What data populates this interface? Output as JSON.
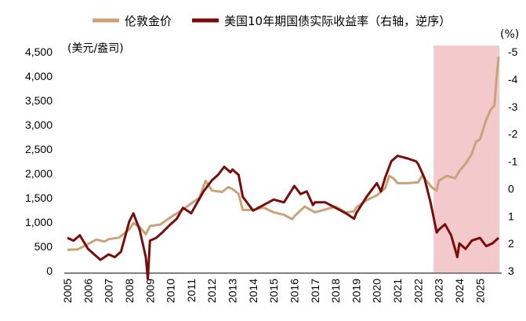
{
  "chart_data": {
    "type": "line",
    "title": "",
    "legend": {
      "placement": "top",
      "entries": [
        {
          "label": "伦敦金价",
          "color": "#c9a27a"
        },
        {
          "label": "美国10年期国债实际收益率（右轴，逆序）",
          "color": "#7a0b0b"
        }
      ]
    },
    "left_axis": {
      "unit_label": "(美元/盎司)",
      "ylim": [
        0,
        4500
      ],
      "ticks": [
        "0",
        "500",
        "1,000",
        "1,500",
        "2,000",
        "2,500",
        "3,000",
        "3,500",
        "4,000",
        "4,500"
      ],
      "tick_values": [
        0,
        500,
        1000,
        1500,
        2000,
        2500,
        3000,
        3500,
        4000,
        4500
      ]
    },
    "right_axis": {
      "unit_label": "(%)",
      "inverted": true,
      "ylim": [
        -5,
        3
      ],
      "ticks": [
        "-5",
        "-4",
        "-3",
        "-2",
        "-1",
        "0",
        "1",
        "2",
        "3"
      ],
      "tick_values": [
        -5,
        -4,
        -3,
        -2,
        -1,
        0,
        1,
        2,
        3
      ]
    },
    "x_axis": {
      "ticks": [
        "2005",
        "2006",
        "2007",
        "2008",
        "2009",
        "2010",
        "2011",
        "2012",
        "2013",
        "2014",
        "2015",
        "2016",
        "2017",
        "2018",
        "2019",
        "2020",
        "2021",
        "2022",
        "2023",
        "2024",
        "2025"
      ],
      "xlim": [
        2005,
        2025.9
      ]
    },
    "shaded_region": {
      "x_start": 2022.75,
      "x_end": 2025.95,
      "color": "#f3c9cc"
    },
    "series": [
      {
        "name": "伦敦金价",
        "axis": "left",
        "color": "#c9a27a",
        "x": [
          2005,
          2005.5,
          2006,
          2006.4,
          2006.8,
          2007,
          2007.5,
          2008,
          2008.2,
          2008.5,
          2008.8,
          2009,
          2009.5,
          2010,
          2010.5,
          2011,
          2011.4,
          2011.7,
          2012,
          2012.5,
          2012.8,
          2013,
          2013.3,
          2013.5,
          2014,
          2014.5,
          2015,
          2015.5,
          2015.9,
          2016,
          2016.5,
          2017,
          2017.5,
          2018,
          2018.5,
          2018.9,
          2019,
          2019.5,
          2020,
          2020.4,
          2020.6,
          2020.8,
          2021,
          2021.5,
          2022,
          2022.2,
          2022.7,
          2022.9,
          2023,
          2023.4,
          2023.8,
          2024,
          2024.3,
          2024.6,
          2024.8,
          2025,
          2025.3,
          2025.5,
          2025.7,
          2025.8,
          2025.9
        ],
        "values": [
          430,
          440,
          550,
          640,
          600,
          650,
          680,
          850,
          980,
          900,
          750,
          920,
          950,
          1100,
          1230,
          1380,
          1500,
          1850,
          1650,
          1620,
          1720,
          1680,
          1580,
          1250,
          1250,
          1300,
          1200,
          1150,
          1060,
          1120,
          1320,
          1200,
          1260,
          1320,
          1200,
          1220,
          1300,
          1450,
          1550,
          1700,
          1950,
          1900,
          1800,
          1800,
          1820,
          1950,
          1700,
          1650,
          1850,
          1950,
          1900,
          2050,
          2200,
          2400,
          2650,
          2700,
          3100,
          3300,
          3400,
          3950,
          4400
        ]
      },
      {
        "name": "美国10年期国债实际收益率（右轴，逆序）",
        "axis": "right",
        "color": "#7a0b0b",
        "x": [
          2005,
          2005.3,
          2005.6,
          2006,
          2006.3,
          2006.6,
          2007,
          2007.3,
          2007.6,
          2008,
          2008.2,
          2008.5,
          2008.8,
          2008.9,
          2009,
          2009.3,
          2009.6,
          2010,
          2010.3,
          2010.6,
          2011,
          2011.3,
          2011.6,
          2012,
          2012.3,
          2012.6,
          2012.9,
          2013,
          2013.3,
          2013.5,
          2013.9,
          2014,
          2014.5,
          2015,
          2015.5,
          2016,
          2016.3,
          2016.6,
          2016.9,
          2017,
          2017.5,
          2018,
          2018.5,
          2018.9,
          2019,
          2019.5,
          2020,
          2020.2,
          2020.4,
          2020.7,
          2021,
          2021.5,
          2021.9,
          2022,
          2022.3,
          2022.6,
          2022.9,
          2023,
          2023.3,
          2023.6,
          2023.9,
          2024,
          2024.3,
          2024.6,
          2025,
          2025.3,
          2025.6,
          2025.9
        ],
        "values": [
          1.8,
          1.9,
          1.7,
          2.2,
          2.4,
          2.6,
          2.4,
          2.5,
          2.3,
          1.2,
          0.9,
          1.5,
          2.5,
          3.3,
          1.9,
          1.8,
          1.6,
          1.3,
          1.1,
          0.7,
          0.9,
          0.5,
          0.1,
          -0.3,
          -0.5,
          -0.8,
          -0.6,
          -0.7,
          -0.5,
          0.3,
          0.7,
          0.8,
          0.6,
          0.4,
          0.5,
          -0.1,
          0.2,
          0.1,
          0.6,
          0.5,
          0.5,
          0.7,
          0.9,
          1.1,
          0.9,
          0.3,
          -0.2,
          0.1,
          -0.4,
          -1.0,
          -1.2,
          -1.1,
          -1.0,
          -0.9,
          -0.4,
          0.5,
          1.6,
          1.5,
          1.3,
          1.7,
          2.5,
          2.0,
          2.2,
          1.9,
          1.8,
          2.1,
          2.0,
          1.8
        ]
      }
    ]
  }
}
